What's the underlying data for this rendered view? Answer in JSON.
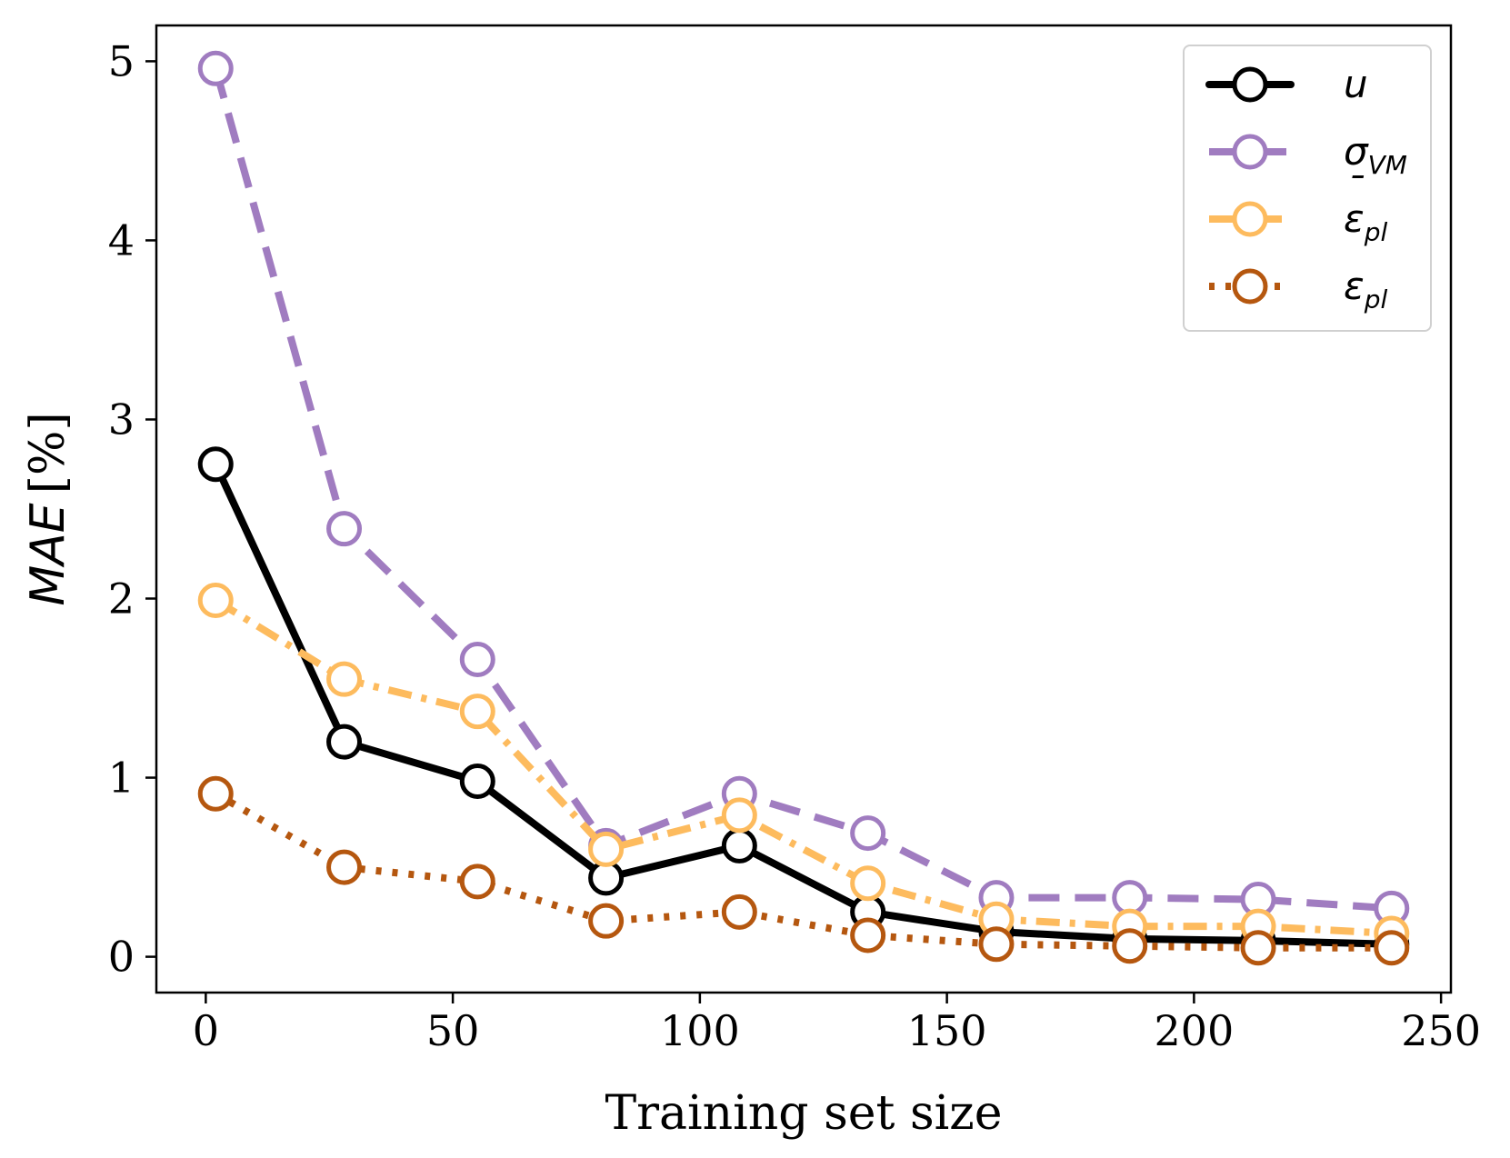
{
  "chart_data": {
    "type": "line",
    "title": "",
    "xlabel": "Training set size",
    "ylabel_main": "MAE",
    "ylabel_unit": "[%]",
    "xlim": [
      -10,
      252
    ],
    "ylim": [
      -0.2,
      5.2
    ],
    "xticks": [
      0,
      50,
      100,
      150,
      200,
      250
    ],
    "xtick_labels": [
      "0",
      "50",
      "100",
      "150",
      "200",
      "250"
    ],
    "yticks": [
      0,
      1,
      2,
      3,
      4,
      5
    ],
    "ytick_labels": [
      "0",
      "1",
      "2",
      "3",
      "4",
      "5"
    ],
    "grid": false,
    "legend_position": "top-right",
    "x": [
      2,
      28,
      55,
      81,
      108,
      134,
      160,
      187,
      213,
      240
    ],
    "series": [
      {
        "name": "u",
        "legend_main": "u",
        "legend_sub": "",
        "legend_accent": "",
        "color": "#000000",
        "dash": "solid",
        "values": [
          2.75,
          1.2,
          0.98,
          0.44,
          0.62,
          0.25,
          0.14,
          0.1,
          0.09,
          0.07
        ]
      },
      {
        "name": "σ_VM",
        "legend_main": "σ",
        "legend_sub": "VM",
        "legend_accent": "",
        "color": "#a07cc0",
        "dash": "dashed",
        "values": [
          4.96,
          2.39,
          1.66,
          0.62,
          0.91,
          0.69,
          0.33,
          0.33,
          0.32,
          0.27
        ]
      },
      {
        "name": "ε̄_pl",
        "legend_main": "ε",
        "legend_sub": "pl",
        "legend_accent": "¯",
        "color": "#fdbb5e",
        "dash": "dashdot",
        "values": [
          1.99,
          1.55,
          1.37,
          0.6,
          0.79,
          0.41,
          0.21,
          0.17,
          0.17,
          0.13
        ]
      },
      {
        "name": "ε_pl",
        "legend_main": "ε",
        "legend_sub": "pl",
        "legend_accent": "",
        "color": "#b5570f",
        "dash": "dotted",
        "values": [
          0.91,
          0.5,
          0.42,
          0.2,
          0.25,
          0.12,
          0.07,
          0.06,
          0.05,
          0.05
        ]
      }
    ]
  }
}
